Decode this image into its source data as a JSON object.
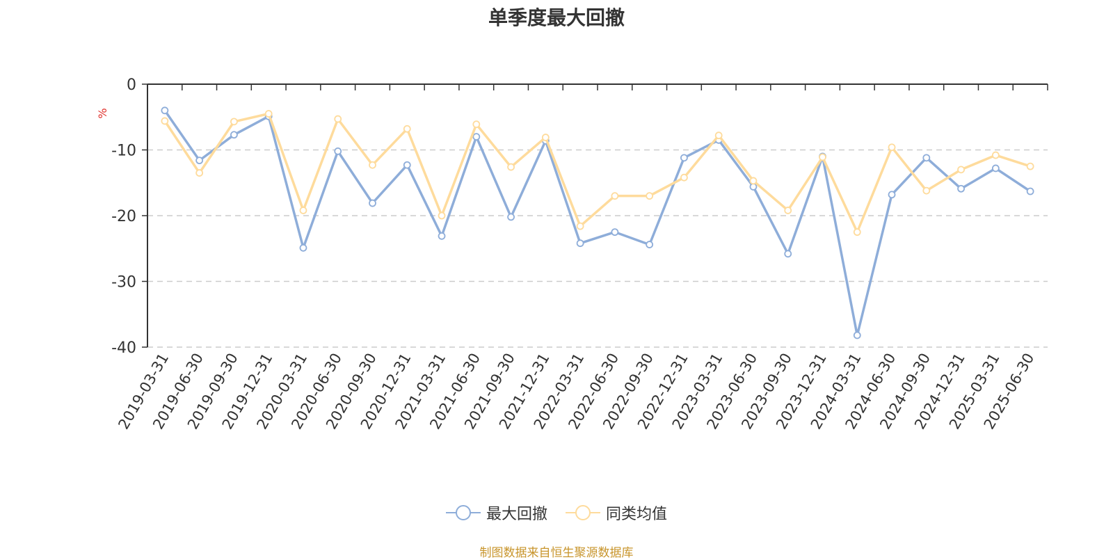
{
  "chart_data": {
    "type": "line",
    "title": "单季度最大回撤",
    "ylabel": "%",
    "ylim": [
      -40,
      0
    ],
    "yticks": [
      0,
      -10,
      -20,
      -30,
      -40
    ],
    "grid": true,
    "legend_position": "bottom",
    "categories": [
      "2019-03-31",
      "2019-06-30",
      "2019-09-30",
      "2019-12-31",
      "2020-03-31",
      "2020-06-30",
      "2020-09-30",
      "2020-12-31",
      "2021-03-31",
      "2021-06-30",
      "2021-09-30",
      "2021-12-31",
      "2022-03-31",
      "2022-06-30",
      "2022-09-30",
      "2022-12-31",
      "2023-03-31",
      "2023-06-30",
      "2023-09-30",
      "2023-12-31",
      "2024-03-31",
      "2024-06-30",
      "2024-09-30",
      "2024-12-31",
      "2025-03-31",
      "2025-06-30"
    ],
    "series": [
      {
        "name": "最大回撤",
        "color": "#8eadd9",
        "values": [
          -4.0,
          -11.6,
          -7.7,
          -4.9,
          -24.9,
          -10.2,
          -18.1,
          -12.3,
          -23.1,
          -8.0,
          -20.2,
          -8.6,
          -24.2,
          -22.5,
          -24.4,
          -11.2,
          -8.5,
          -15.6,
          -25.8,
          -11.0,
          -38.2,
          -16.8,
          -11.2,
          -15.9,
          -12.8,
          -16.3
        ]
      },
      {
        "name": "同类均值",
        "color": "#fedb9c",
        "values": [
          -5.6,
          -13.5,
          -5.7,
          -4.5,
          -19.2,
          -5.3,
          -12.3,
          -6.8,
          -20.0,
          -6.1,
          -12.6,
          -8.1,
          -21.6,
          -17.0,
          -17.0,
          -14.2,
          -7.8,
          -14.7,
          -19.2,
          -11.1,
          -22.5,
          -9.6,
          -16.2,
          -13.0,
          -10.8,
          -12.5
        ]
      }
    ]
  },
  "footer": {
    "note": "制图数据来自恒生聚源数据库"
  }
}
